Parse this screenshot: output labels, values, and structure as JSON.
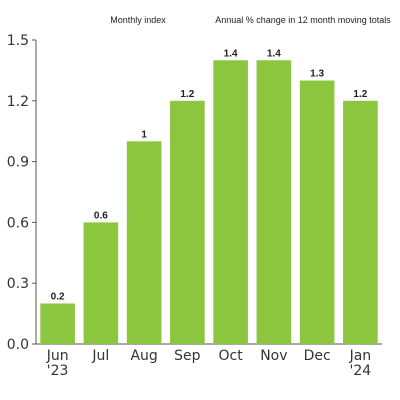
{
  "header": {
    "left_title": "Monthly index",
    "right_title": "Annual % change in 12 month moving totals"
  },
  "chart_data": {
    "type": "bar",
    "categories": [
      [
        "Jun",
        "'23"
      ],
      [
        "Jul"
      ],
      [
        "Aug"
      ],
      [
        "Sep"
      ],
      [
        "Oct"
      ],
      [
        "Nov"
      ],
      [
        "Dec"
      ],
      [
        "Jan",
        "'24"
      ]
    ],
    "values": [
      0.2,
      0.6,
      1,
      1.2,
      1.4,
      1.4,
      1.3,
      1.2
    ],
    "data_labels": [
      "0.2",
      "0.6",
      "1",
      "1.2",
      "1.4",
      "1.4",
      "1.3",
      "1.2"
    ],
    "ylim": [
      0,
      1.5
    ],
    "yticks": [
      0,
      0.3,
      0.6,
      0.9,
      1.2,
      1.5
    ],
    "ytick_labels": [
      "0.0",
      "0.3",
      "0.6",
      "0.9",
      "1.2",
      "1.5"
    ],
    "grid": false,
    "bar_color": "#8cc63e",
    "axis_color": "#555555"
  }
}
